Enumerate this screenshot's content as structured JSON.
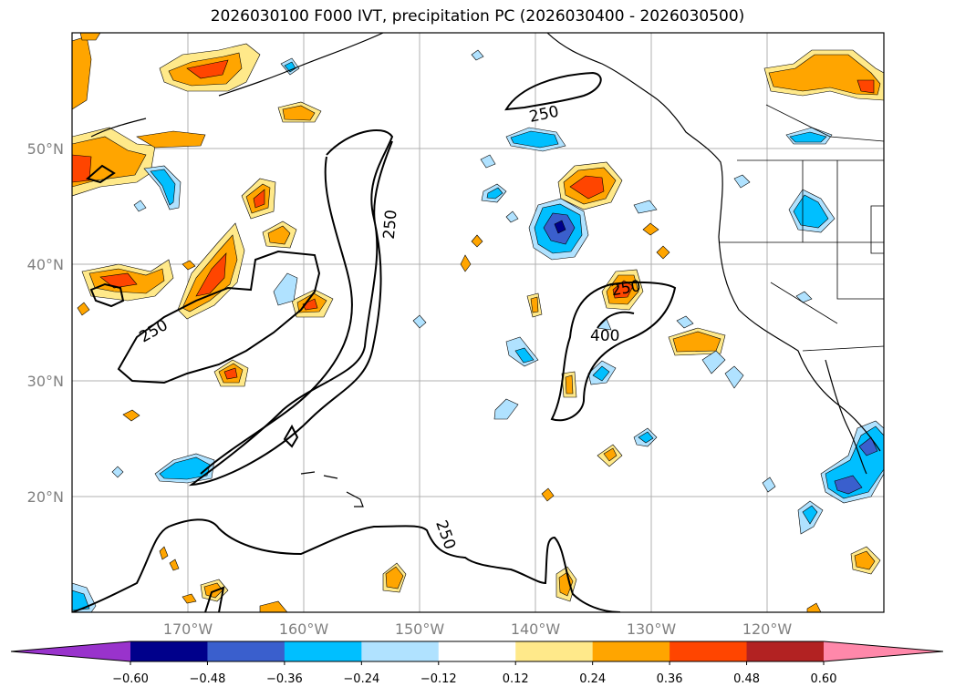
{
  "title": "2026030100 F000 IVT, precipitation PC (2026030400 - 2026030500)",
  "map": {
    "lat_labels": [
      "50°N",
      "40°N",
      "30°N",
      "20°N"
    ],
    "lon_labels": [
      "170°W",
      "160°W",
      "150°W",
      "140°W",
      "130°W",
      "120°W"
    ],
    "contour_labels": [
      "250",
      "250",
      "250",
      "250",
      "250",
      "400"
    ]
  },
  "colorbar": {
    "tick_labels": [
      "−0.60",
      "−0.48",
      "−0.36",
      "−0.24",
      "−0.12",
      "0.12",
      "0.24",
      "0.36",
      "0.48",
      "0.60"
    ],
    "colors": [
      "#9933cc",
      "#00008b",
      "#3a5fcd",
      "#00bfff",
      "#b0e2ff",
      "#ffffff",
      "#ffe98a",
      "#ffa500",
      "#ff4500",
      "#b22222",
      "#ff88aa"
    ]
  }
}
